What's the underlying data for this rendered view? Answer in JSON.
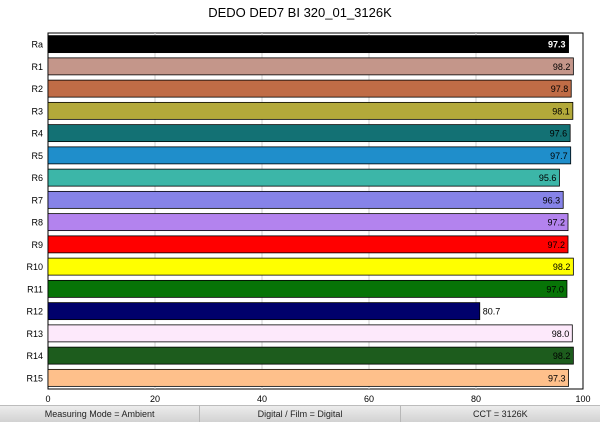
{
  "chart_data": {
    "type": "bar",
    "orientation": "horizontal",
    "title": "DEDO DED7 BI 320_01_3126K",
    "categories": [
      "Ra",
      "R1",
      "R2",
      "R3",
      "R4",
      "R5",
      "R6",
      "R7",
      "R8",
      "R9",
      "R10",
      "R11",
      "R12",
      "R13",
      "R14",
      "R15"
    ],
    "values": [
      97.3,
      98.2,
      97.8,
      98.1,
      97.6,
      97.7,
      95.6,
      96.3,
      97.2,
      97.2,
      98.2,
      97.0,
      80.7,
      98.0,
      98.2,
      97.3
    ],
    "value_labels": [
      "97.3",
      "98.2",
      "97.8",
      "98.1",
      "97.6",
      "97.7",
      "95.6",
      "96.3",
      "97.2",
      "97.2",
      "98.2",
      "97.0",
      "80.7",
      "98.0",
      "98.2",
      "97.3"
    ],
    "colors": [
      "#000000",
      "#c4968a",
      "#c06c46",
      "#b3a93a",
      "#137174",
      "#1f8ecb",
      "#3cb6a8",
      "#8683e8",
      "#b383ee",
      "#ff0000",
      "#ffff00",
      "#077407",
      "#00006b",
      "#fde9fb",
      "#1d5c1d",
      "#fec08b"
    ],
    "xlim": [
      0,
      100
    ],
    "xticks": [
      0,
      20,
      40,
      60,
      80,
      100
    ],
    "grid": true,
    "xlabel": "",
    "ylabel": ""
  },
  "status": {
    "measuring_mode": "Measuring Mode = Ambient",
    "digital_film": "Digital / Film = Digital",
    "cct": "CCT = 3126K"
  }
}
